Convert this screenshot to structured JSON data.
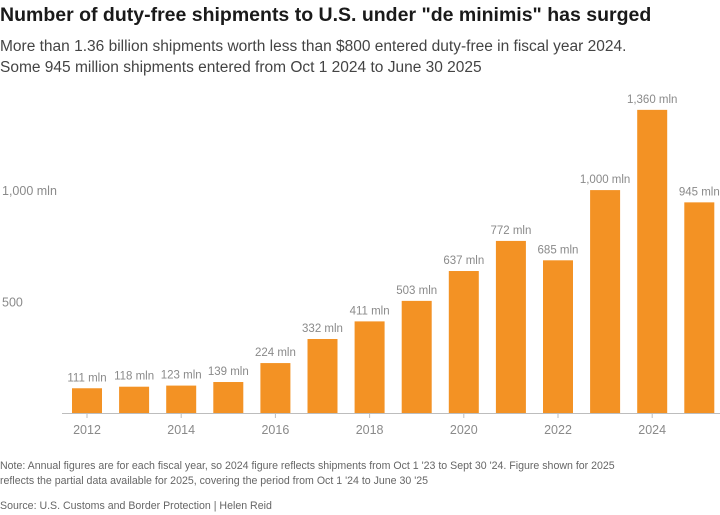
{
  "title": "Number of duty-free shipments to U.S. under \"de minimis\" has surged",
  "subtitle": [
    "More than 1.36 billion shipments worth less than $800 entered duty-free in fiscal year 2024.",
    "Some 945 million shipments entered from Oct 1 2024 to June 30 2025"
  ],
  "note_lines": [
    "Note: Annual figures are for each fiscal year, so 2024 figure reflects shipments from Oct 1 '23 to Sept 30 '24. Figure shown for 2025",
    "reflects the partial data available for 2025, covering the period from Oct 1 '24 to June 30 '25"
  ],
  "source": "Source: U.S. Customs and Border Protection | Helen Reid",
  "colors": {
    "bar": "#F39224",
    "label": "#8a8a8a",
    "axis": "#bdbdbd"
  },
  "chart_data": {
    "type": "bar",
    "categories": [
      "2012",
      "2013",
      "2014",
      "2015",
      "2016",
      "2017",
      "2018",
      "2019",
      "2020",
      "2021",
      "2022",
      "2023",
      "2024",
      "2025"
    ],
    "values": [
      111,
      118,
      123,
      139,
      224,
      332,
      411,
      503,
      637,
      772,
      685,
      1000,
      1360,
      945
    ],
    "data_labels": [
      "111 mln",
      "118 mln",
      "123 mln",
      "139 mln",
      "224 mln",
      "332 mln",
      "411 mln",
      "503 mln",
      "637 mln",
      "772 mln",
      "685 mln",
      "1,000 mln",
      "1,360 mln",
      "945 mln"
    ],
    "x_tick_labels": [
      "2012",
      "2014",
      "2016",
      "2018",
      "2020",
      "2022",
      "2024"
    ],
    "y_ticks": [
      500,
      1000
    ],
    "y_tick_labels": [
      "500",
      "1,000 mln"
    ],
    "ylim": [
      0,
      1400
    ],
    "unit": "mln",
    "grid": false
  }
}
